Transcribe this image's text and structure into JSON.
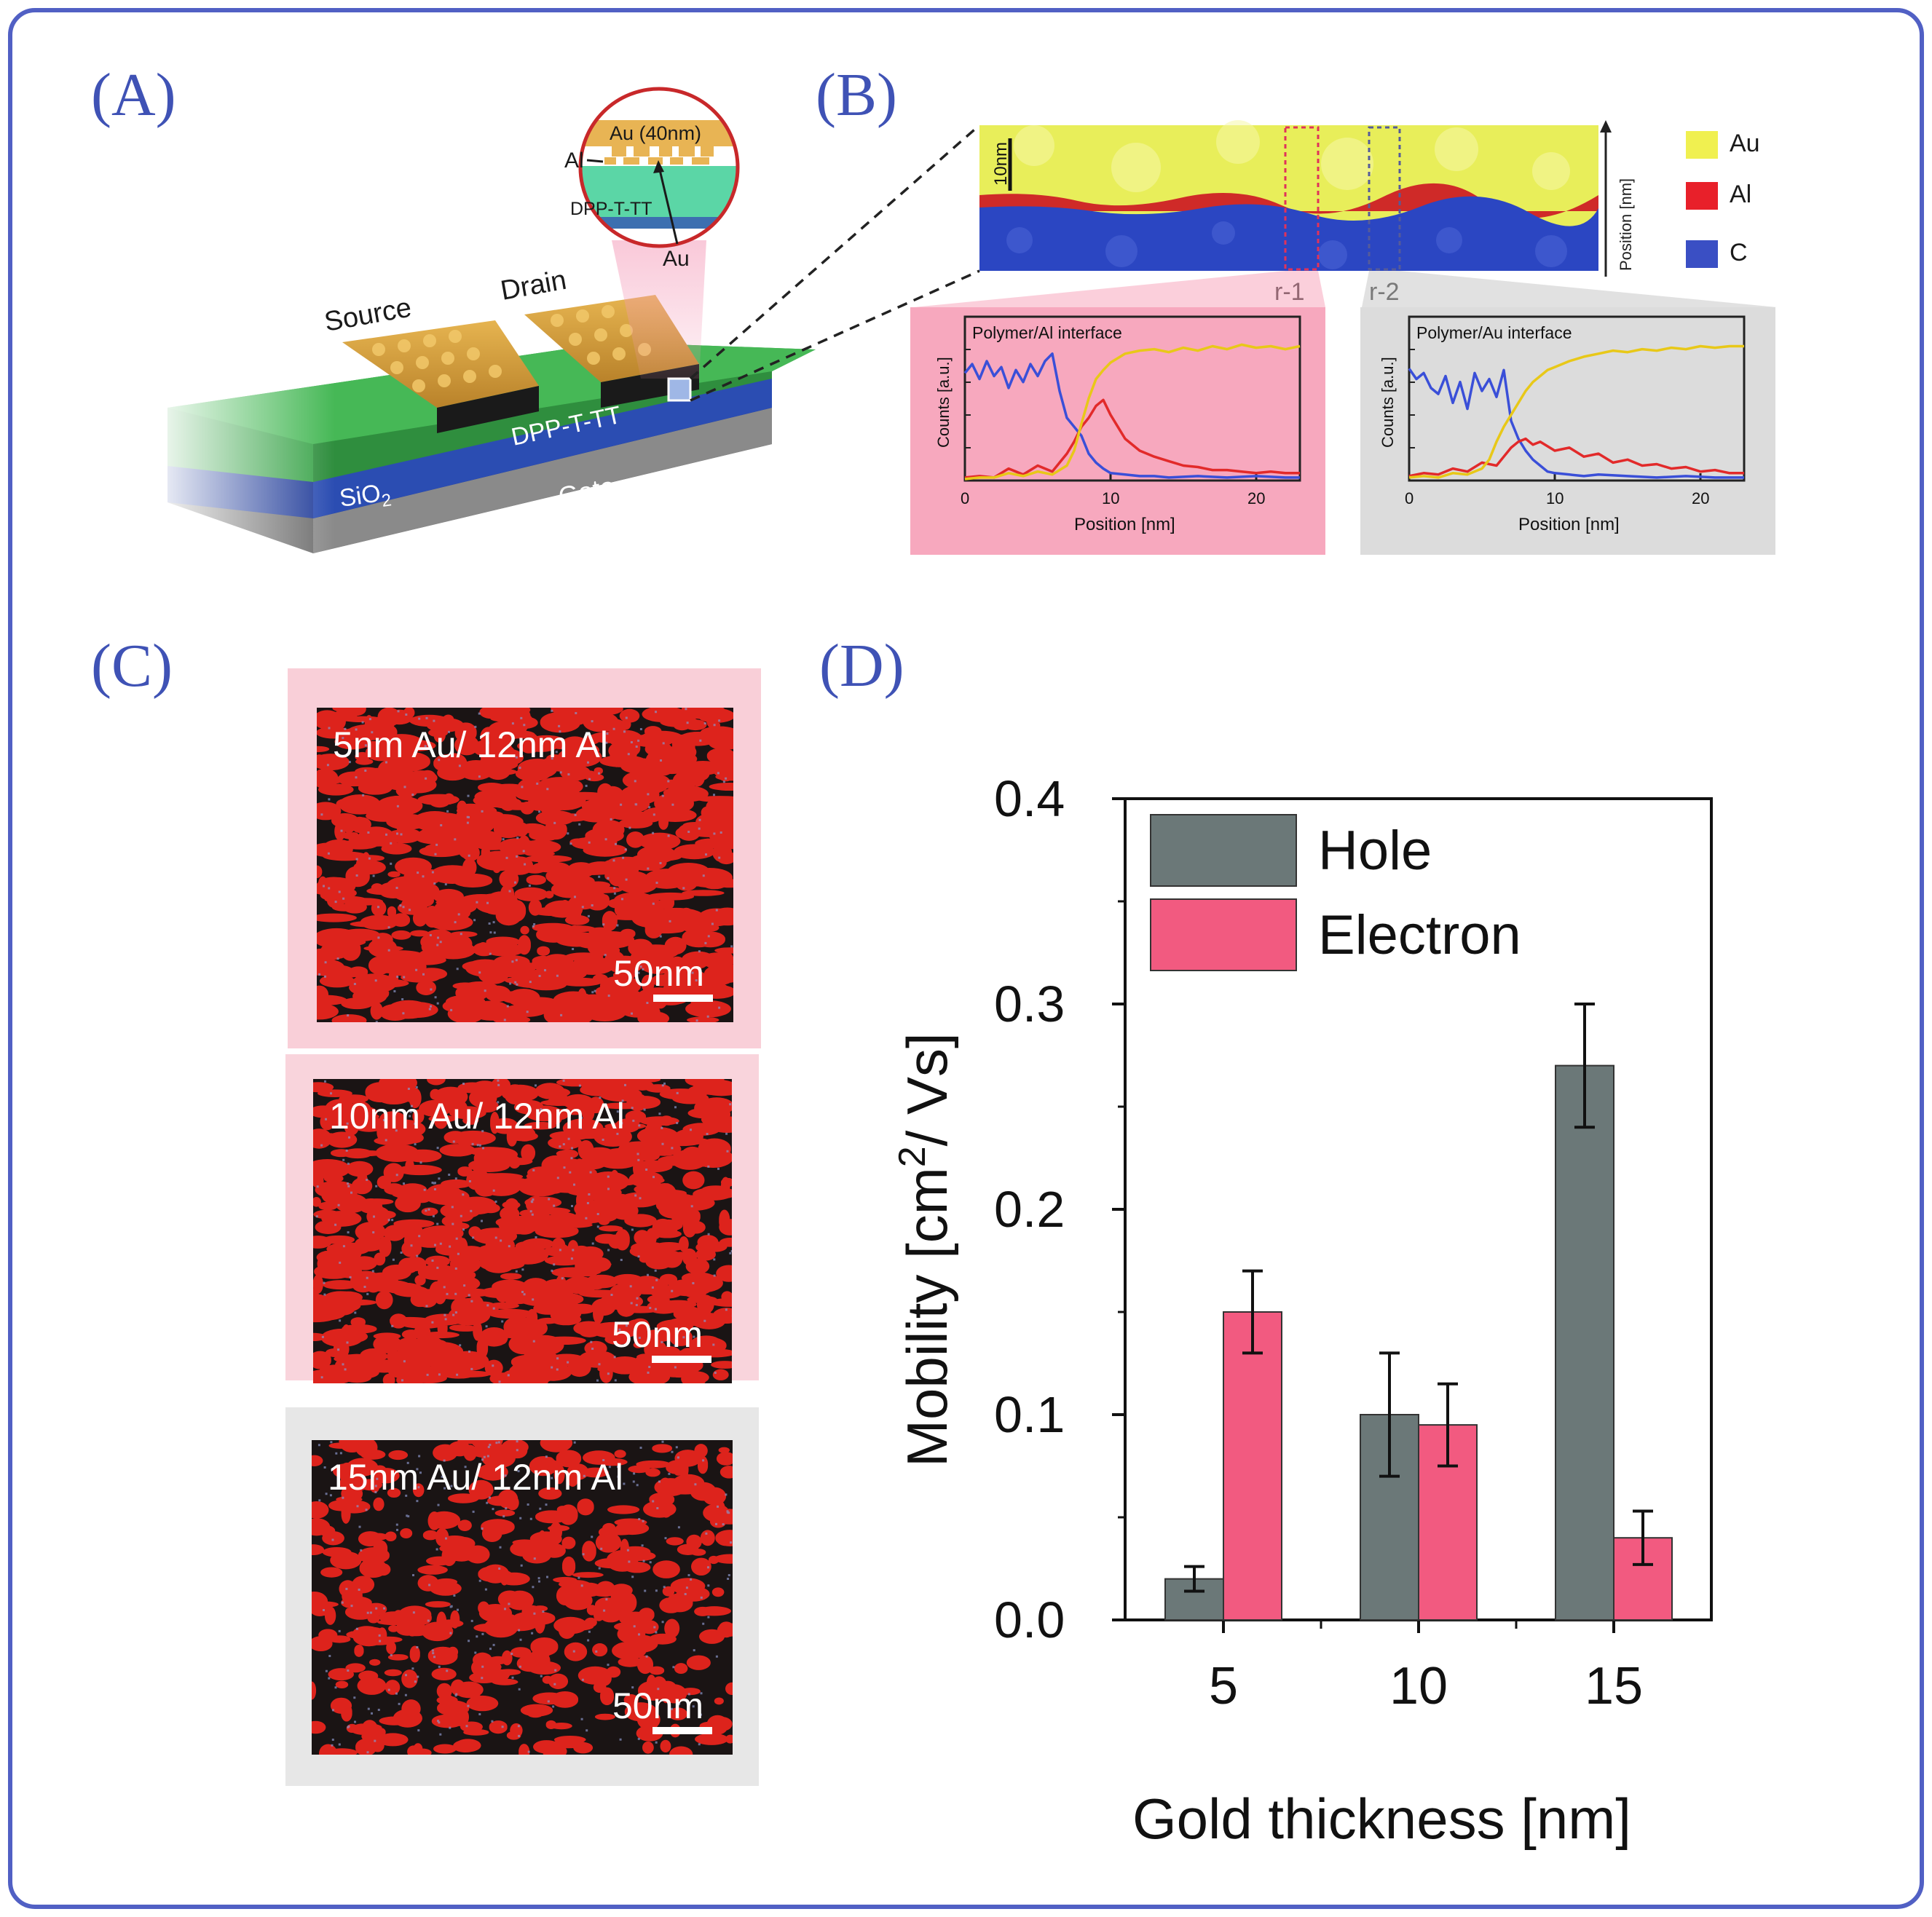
{
  "panels": {
    "a": {
      "letter": "(A)"
    },
    "b": {
      "letter": "(B)"
    },
    "c": {
      "letter": "(C)"
    },
    "d": {
      "letter": "(D)"
    }
  },
  "device": {
    "source": "Source",
    "drain": "Drain",
    "polymer": "DPP-T-TT",
    "oxide_main": "SiO",
    "oxide_sub": "2",
    "gate": "Gate",
    "inset": {
      "au_layer": "Au (40nm)",
      "al": "Al",
      "polymer": "DPP-T-TT",
      "au": "Au"
    }
  },
  "tem": {
    "scale": "10nm",
    "axis": "Position [nm]",
    "region1": "r-1",
    "region2": "r-2",
    "legend": [
      {
        "label": "Au",
        "color": "#f0f050"
      },
      {
        "label": "Al",
        "color": "#e8202a"
      },
      {
        "label": "C",
        "color": "#3a4fc4"
      }
    ]
  },
  "profiles": [
    {
      "title": "Polymer/Al interface",
      "ylabel": "Counts [a.u.]",
      "xlabel": "Position [nm]",
      "xticks": [
        "0",
        "10",
        "20"
      ],
      "background": "#f7a8be",
      "series": [
        {
          "name": "C",
          "color": "#3a4fd8",
          "x": [
            0,
            0.5,
            1,
            1.5,
            2,
            2.5,
            3,
            3.5,
            4,
            4.5,
            5,
            5.5,
            6,
            6.5,
            7,
            7.5,
            8,
            8.5,
            9,
            9.5,
            10,
            11,
            12,
            13,
            14,
            16,
            18,
            20,
            22,
            23
          ],
          "y": [
            0.72,
            0.78,
            0.68,
            0.8,
            0.7,
            0.76,
            0.62,
            0.74,
            0.66,
            0.78,
            0.7,
            0.8,
            0.85,
            0.6,
            0.42,
            0.36,
            0.3,
            0.18,
            0.12,
            0.08,
            0.05,
            0.04,
            0.03,
            0.03,
            0.02,
            0.03,
            0.02,
            0.03,
            0.02,
            0.02
          ]
        },
        {
          "name": "Al",
          "color": "#e22a2a",
          "x": [
            0,
            1,
            2,
            3,
            4,
            5,
            6,
            6.5,
            7,
            7.5,
            8,
            8.5,
            9,
            9.5,
            10,
            10.5,
            11,
            12,
            13,
            14,
            15,
            16,
            17,
            18,
            19,
            20,
            21,
            22,
            23
          ],
          "y": [
            0.02,
            0.03,
            0.02,
            0.08,
            0.04,
            0.1,
            0.06,
            0.12,
            0.18,
            0.26,
            0.36,
            0.42,
            0.5,
            0.54,
            0.44,
            0.36,
            0.28,
            0.2,
            0.16,
            0.13,
            0.1,
            0.09,
            0.07,
            0.07,
            0.06,
            0.05,
            0.06,
            0.05,
            0.05
          ]
        },
        {
          "name": "Au",
          "color": "#e8c818",
          "x": [
            0,
            1,
            2,
            3,
            4,
            5,
            6,
            7,
            7.5,
            8,
            8.5,
            9,
            9.5,
            10,
            10.5,
            11,
            12,
            13,
            14,
            15,
            16,
            17,
            18,
            19,
            20,
            21,
            22,
            23
          ],
          "y": [
            0.01,
            0.02,
            0.02,
            0.05,
            0.03,
            0.06,
            0.04,
            0.1,
            0.2,
            0.38,
            0.55,
            0.68,
            0.74,
            0.79,
            0.82,
            0.85,
            0.87,
            0.88,
            0.86,
            0.89,
            0.87,
            0.9,
            0.88,
            0.91,
            0.89,
            0.9,
            0.88,
            0.9
          ]
        }
      ]
    },
    {
      "title": "Polymer/Au interface",
      "ylabel": "Counts [a.u.]",
      "xlabel": "Position [nm]",
      "xticks": [
        "0",
        "10",
        "20"
      ],
      "background": "#dcdcdc",
      "series": [
        {
          "name": "C",
          "color": "#3a4fd8",
          "x": [
            0,
            0.5,
            1,
            1.5,
            2,
            2.5,
            3,
            3.5,
            4,
            4.5,
            5,
            5.5,
            6,
            6.5,
            7,
            7.5,
            8,
            8.5,
            9,
            9.5,
            10,
            11,
            12,
            13,
            15,
            17,
            19,
            21,
            23
          ],
          "y": [
            0.75,
            0.68,
            0.72,
            0.62,
            0.58,
            0.7,
            0.52,
            0.66,
            0.48,
            0.72,
            0.6,
            0.68,
            0.56,
            0.74,
            0.4,
            0.28,
            0.2,
            0.14,
            0.1,
            0.06,
            0.05,
            0.04,
            0.03,
            0.04,
            0.03,
            0.02,
            0.03,
            0.02,
            0.02
          ]
        },
        {
          "name": "Al",
          "color": "#e22a2a",
          "x": [
            0,
            1,
            2,
            3,
            4,
            5,
            6,
            6.5,
            7,
            7.5,
            8,
            8.5,
            9,
            10,
            11,
            12,
            13,
            14,
            15,
            16,
            17,
            18,
            19,
            20,
            21,
            22,
            23
          ],
          "y": [
            0.03,
            0.05,
            0.04,
            0.08,
            0.06,
            0.12,
            0.1,
            0.16,
            0.22,
            0.26,
            0.28,
            0.24,
            0.26,
            0.2,
            0.22,
            0.16,
            0.18,
            0.12,
            0.14,
            0.1,
            0.11,
            0.08,
            0.09,
            0.06,
            0.07,
            0.05,
            0.05
          ]
        },
        {
          "name": "Au",
          "color": "#e8c818",
          "x": [
            0,
            1,
            2,
            3,
            4,
            5,
            5.5,
            6,
            6.5,
            7,
            7.5,
            8,
            8.5,
            9,
            9.5,
            10,
            11,
            12,
            13,
            14,
            15,
            16,
            17,
            18,
            19,
            20,
            21,
            22,
            23
          ],
          "y": [
            0.02,
            0.03,
            0.02,
            0.05,
            0.04,
            0.08,
            0.14,
            0.26,
            0.36,
            0.44,
            0.52,
            0.6,
            0.66,
            0.7,
            0.74,
            0.76,
            0.8,
            0.83,
            0.85,
            0.87,
            0.86,
            0.88,
            0.87,
            0.89,
            0.88,
            0.9,
            0.89,
            0.9,
            0.9
          ]
        }
      ]
    }
  ],
  "maps": [
    {
      "label": "5nm Au/ 12nm Al",
      "scale": "50nm",
      "density": 0.62,
      "frame": "#f9cfd8"
    },
    {
      "label": "10nm Au/ 12nm Al",
      "scale": "50nm",
      "density": 0.58,
      "frame": "#f9d4dc"
    },
    {
      "label": "15nm Au/ 12nm Al",
      "scale": "50nm",
      "density": 0.3,
      "frame": "#e7e7e7"
    }
  ],
  "chart_data": {
    "type": "bar",
    "categories": [
      "5",
      "10",
      "15"
    ],
    "series": [
      {
        "name": "Hole",
        "color": "#6b7878",
        "values": [
          0.02,
          0.1,
          0.27
        ],
        "errors": [
          0.006,
          0.03,
          0.03
        ]
      },
      {
        "name": "Electron",
        "color": "#f25a80",
        "values": [
          0.15,
          0.095,
          0.04
        ],
        "errors": [
          0.02,
          0.02,
          0.013
        ]
      }
    ],
    "xlabel": "Gold thickness [nm]",
    "ylabel_main": "Mobility [cm",
    "ylabel_sup": "2",
    "ylabel_tail": "/ Vs]",
    "ylim": [
      0,
      0.4
    ],
    "yticks": [
      "0.0",
      "0.1",
      "0.2",
      "0.3",
      "0.4"
    ],
    "legend_position": "top-left"
  }
}
